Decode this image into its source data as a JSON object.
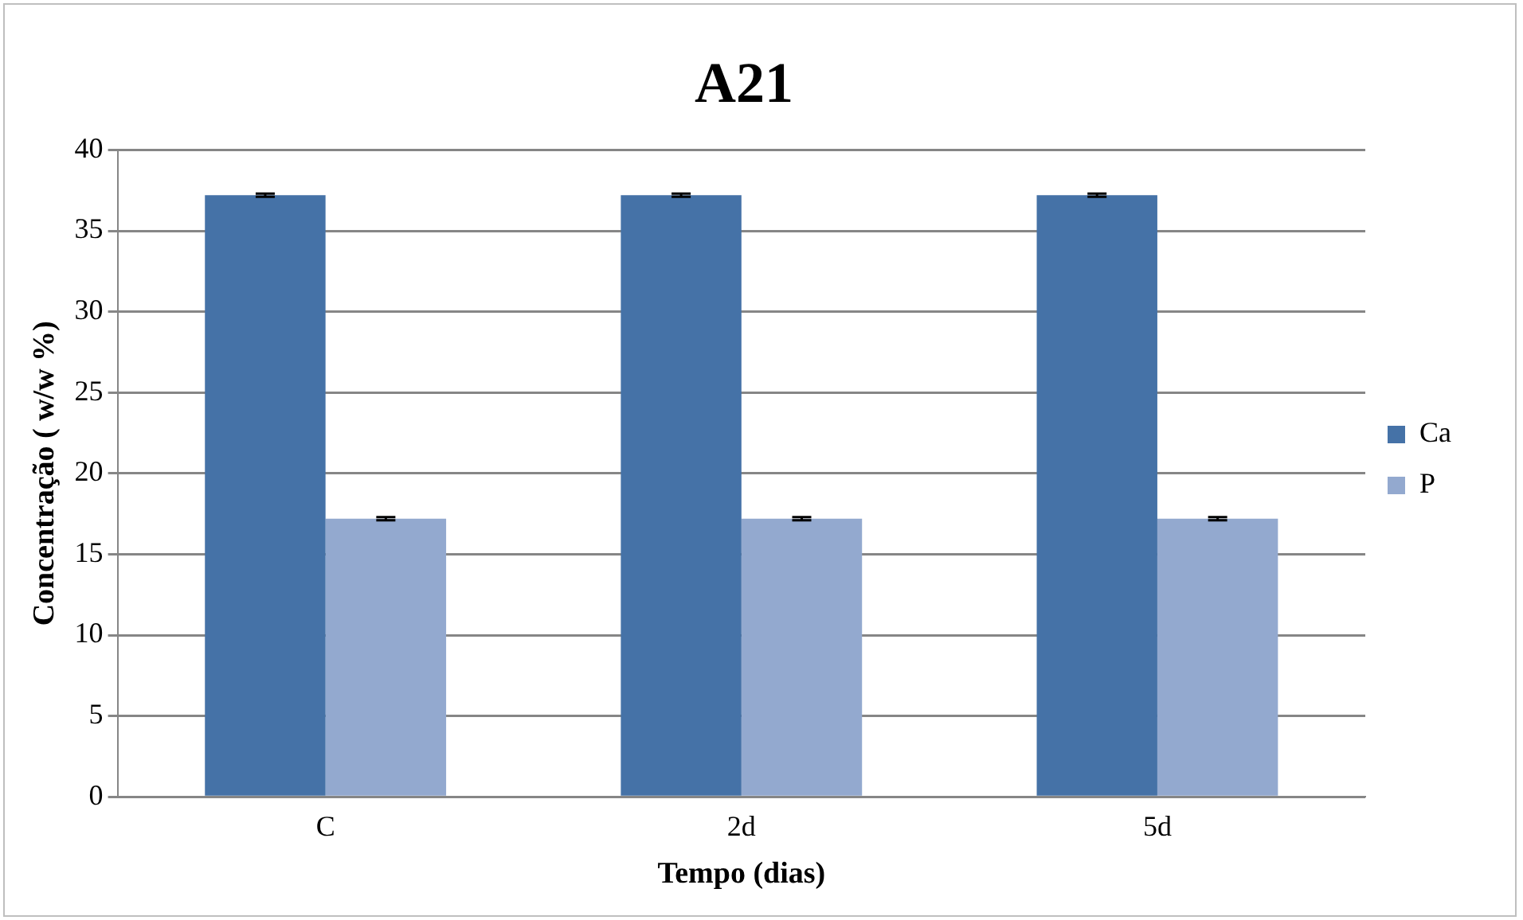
{
  "chart_data": {
    "type": "bar",
    "title": "A21",
    "xlabel": "Tempo (dias)",
    "ylabel": "Concentração ( w/w %)",
    "categories": [
      "C",
      "2d",
      "5d"
    ],
    "series": [
      {
        "name": "Ca",
        "color": "#4572a7",
        "values": [
          37.2,
          37.2,
          37.2
        ],
        "errors": [
          0.1,
          0.1,
          0.1
        ]
      },
      {
        "name": "P",
        "color": "#93a9cf",
        "values": [
          17.2,
          17.2,
          17.2
        ],
        "errors": [
          0.1,
          0.1,
          0.1
        ]
      }
    ],
    "ylim": [
      0,
      40
    ],
    "yticks": [
      0,
      5,
      10,
      15,
      20,
      25,
      30,
      35,
      40
    ],
    "grid": "y",
    "legend": "right"
  }
}
